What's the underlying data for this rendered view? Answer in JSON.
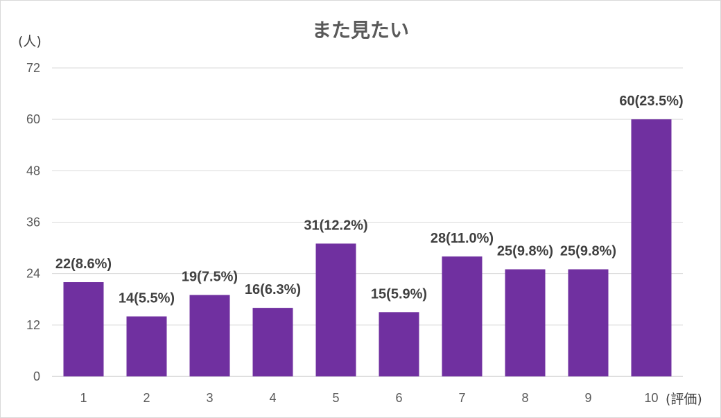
{
  "chart_data": {
    "type": "bar",
    "title": "また見たい",
    "ylabel": "(人)",
    "xlabel": "(評価)",
    "categories": [
      "1",
      "2",
      "3",
      "4",
      "5",
      "6",
      "7",
      "8",
      "9",
      "10"
    ],
    "values": [
      22,
      14,
      19,
      16,
      31,
      15,
      28,
      25,
      25,
      60
    ],
    "data_labels": [
      "22(8.6%)",
      "14(5.5%)",
      "19(7.5%)",
      "16(6.3%)",
      "31(12.2%)",
      "15(5.9%)",
      "28(11.0%)",
      "25(9.8%)",
      "25(9.8%)",
      "60(23.5%)"
    ],
    "ylim": [
      0,
      72
    ],
    "yticks": [
      "0",
      "12",
      "24",
      "36",
      "48",
      "60",
      "72"
    ],
    "grid": true,
    "legend": "none",
    "colors": {
      "bar": "#7030a0",
      "grid": "#d9d9d9",
      "axis": "#bfbfbf",
      "text": "#595959"
    }
  }
}
